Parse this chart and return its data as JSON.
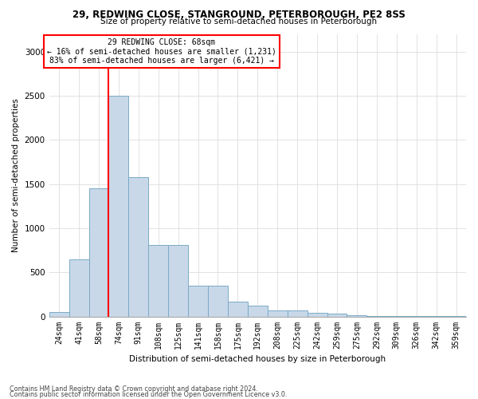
{
  "title1": "29, REDWING CLOSE, STANGROUND, PETERBOROUGH, PE2 8SS",
  "title2": "Size of property relative to semi-detached houses in Peterborough",
  "xlabel": "Distribution of semi-detached houses by size in Peterborough",
  "ylabel": "Number of semi-detached properties",
  "categories": [
    "24sqm",
    "41sqm",
    "58sqm",
    "74sqm",
    "91sqm",
    "108sqm",
    "125sqm",
    "141sqm",
    "158sqm",
    "175sqm",
    "192sqm",
    "208sqm",
    "225sqm",
    "242sqm",
    "259sqm",
    "275sqm",
    "292sqm",
    "309sqm",
    "326sqm",
    "342sqm",
    "359sqm"
  ],
  "values": [
    50,
    650,
    1450,
    2500,
    1580,
    810,
    810,
    350,
    350,
    170,
    120,
    70,
    70,
    40,
    30,
    10,
    5,
    5,
    5,
    5,
    5
  ],
  "bar_color": "#c8d8e8",
  "bar_edge_color": "#7aaac8",
  "grid_color": "#dddddd",
  "red_line_x": 2.5,
  "annotation_text": "29 REDWING CLOSE: 68sqm\n← 16% of semi-detached houses are smaller (1,231)\n83% of semi-detached houses are larger (6,421) →",
  "annotation_box_color": "white",
  "annotation_border_color": "red",
  "ylim": [
    0,
    3200
  ],
  "yticks": [
    0,
    500,
    1000,
    1500,
    2000,
    2500,
    3000
  ],
  "footnote1": "Contains HM Land Registry data © Crown copyright and database right 2024.",
  "footnote2": "Contains public sector information licensed under the Open Government Licence v3.0.",
  "bg_color": "white"
}
